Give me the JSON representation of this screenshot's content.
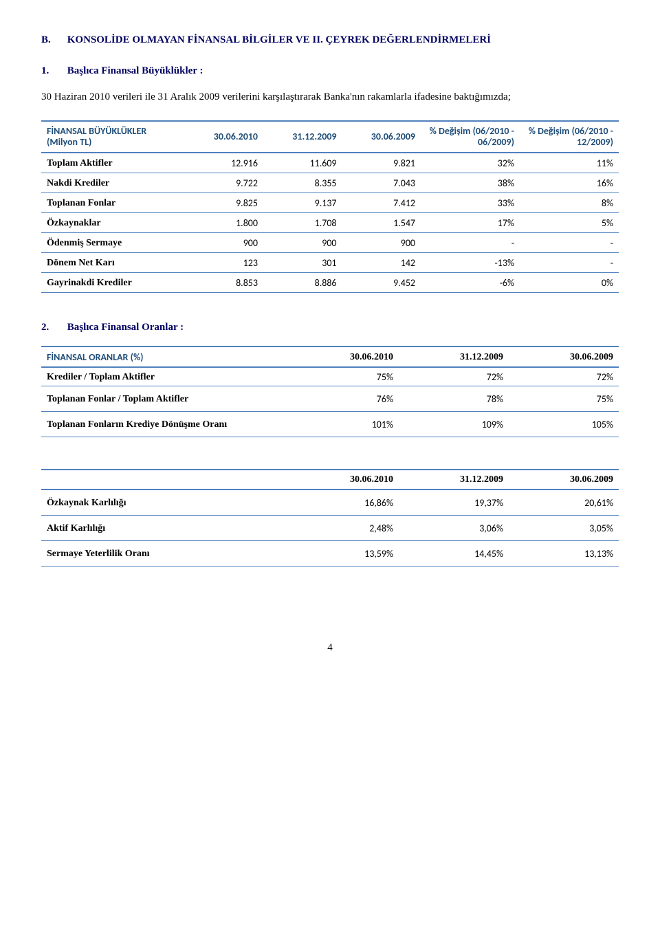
{
  "section": {
    "letter": "B.",
    "title": "KONSOLİDE OLMAYAN FİNANSAL BİLGİLER VE II. ÇEYREK DEĞERLENDİRMELERİ"
  },
  "sub1": {
    "num": "1.",
    "title": "Başlıca Finansal Büyüklükler :",
    "intro": "30 Haziran 2010 verileri ile 31 Aralık 2009 verilerini karşılaştırarak Banka'nın rakamlarla ifadesine baktığımızda;"
  },
  "table1": {
    "header_label": "FİNANSAL BÜYÜKLÜKLER (Milyon TL)",
    "cols": [
      "30.06.2010",
      "31.12.2009",
      "30.06.2009",
      "% Değişim (06/2010 - 06/2009)",
      "% Değişim (06/2010 - 12/2009)"
    ],
    "rows": [
      {
        "label": "Toplam Aktifler",
        "v": [
          "12.916",
          "11.609",
          "9.821",
          "32%",
          "11%"
        ]
      },
      {
        "label": "Nakdi Krediler",
        "v": [
          "9.722",
          "8.355",
          "7.043",
          "38%",
          "16%"
        ]
      },
      {
        "label": "Toplanan Fonlar",
        "v": [
          "9.825",
          "9.137",
          "7.412",
          "33%",
          "8%"
        ]
      },
      {
        "label": "Özkaynaklar",
        "v": [
          "1.800",
          "1.708",
          "1.547",
          "17%",
          "5%"
        ]
      },
      {
        "label": "Ödenmiş Sermaye",
        "v": [
          "900",
          "900",
          "900",
          "-",
          "-"
        ]
      },
      {
        "label": "Dönem Net Karı",
        "v": [
          "123",
          "301",
          "142",
          "-13%",
          "-"
        ]
      },
      {
        "label": "Gayrinakdi Krediler",
        "v": [
          "8.853",
          "8.886",
          "9.452",
          "-6%",
          "0%"
        ]
      }
    ]
  },
  "sub2": {
    "num": "2.",
    "title": "Başlıca Finansal Oranlar :"
  },
  "table2": {
    "header_label": "FİNANSAL ORANLAR (%)",
    "cols": [
      "30.06.2010",
      "31.12.2009",
      "30.06.2009"
    ],
    "rows": [
      {
        "label": "Krediler / Toplam Aktifler",
        "v": [
          "75%",
          "72%",
          "72%"
        ]
      },
      {
        "label": "Toplanan Fonlar / Toplam Aktifler",
        "v": [
          "76%",
          "78%",
          "75%"
        ]
      },
      {
        "label": "Toplanan Fonların Krediye Dönüşme Oranı",
        "v": [
          "101%",
          "109%",
          "105%"
        ]
      }
    ]
  },
  "table3": {
    "header_label": "",
    "cols": [
      "30.06.2010",
      "31.12.2009",
      "30.06.2009"
    ],
    "rows": [
      {
        "label": "Özkaynak Karlılığı",
        "v": [
          "16,86%",
          "19,37%",
          "20,61%"
        ]
      },
      {
        "label": "Aktif Karlılığı",
        "v": [
          "2,48%",
          "3,06%",
          "3,05%"
        ]
      },
      {
        "label": "Sermaye Yeterlilik Oranı",
        "v": [
          "13,59%",
          "14,45%",
          "13,13%"
        ]
      }
    ]
  },
  "page_number": "4",
  "colors": {
    "heading": "#000060",
    "table_header_text": "#1f4e79",
    "border": "#4f81bd"
  }
}
